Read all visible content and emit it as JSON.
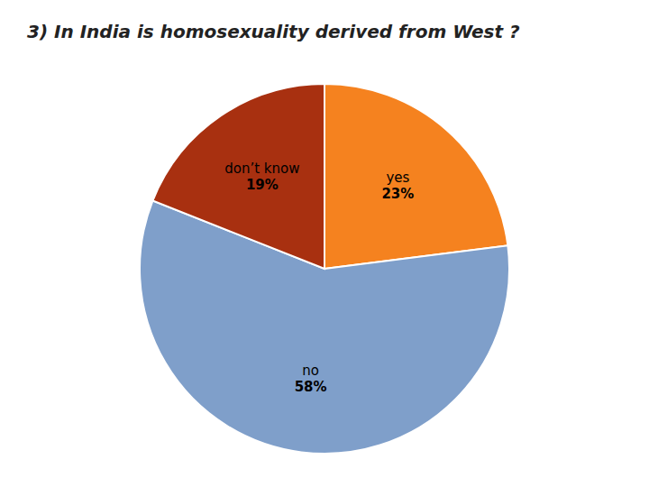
{
  "chart_data": {
    "type": "pie",
    "title": "3)  In India is homosexuality derived from West ?",
    "categories": [
      "yes",
      "no",
      "don’t know"
    ],
    "values": [
      23,
      58,
      19
    ],
    "value_labels": [
      "23%",
      "58%",
      "19%"
    ],
    "data_labels": true,
    "colors": [
      "#F5821F",
      "#7F9FCA",
      "#A83010"
    ]
  }
}
